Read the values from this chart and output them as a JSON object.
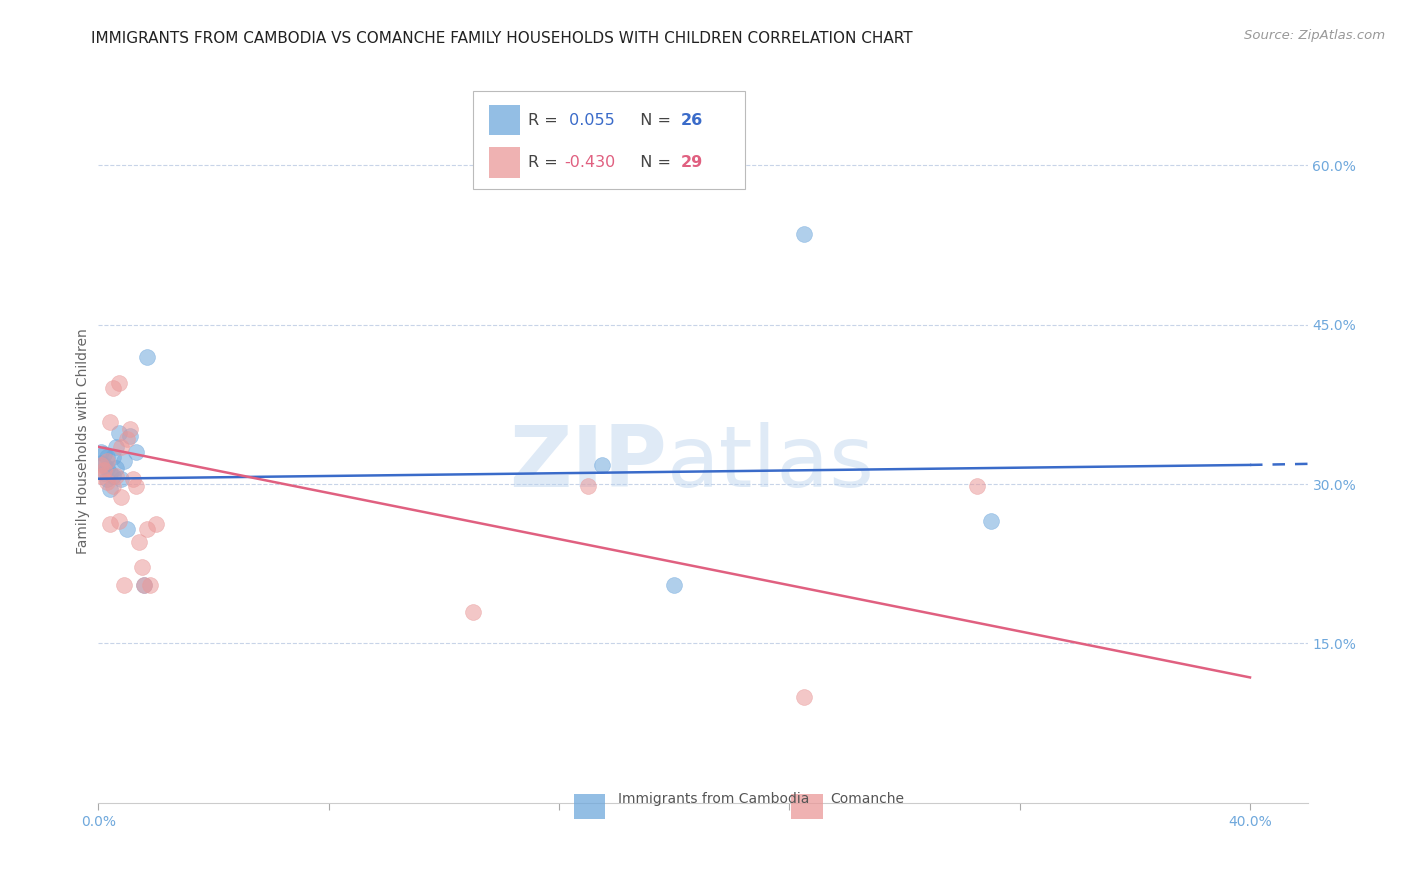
{
  "title": "IMMIGRANTS FROM CAMBODIA VS COMANCHE FAMILY HOUSEHOLDS WITH CHILDREN CORRELATION CHART",
  "source": "Source: ZipAtlas.com",
  "ylabel": "Family Households with Children",
  "y_ticks": [
    0.0,
    0.15,
    0.3,
    0.45,
    0.6
  ],
  "y_tick_labels": [
    "",
    "15.0%",
    "30.0%",
    "45.0%",
    "60.0%"
  ],
  "x_ticks": [
    0.0,
    0.08,
    0.16,
    0.24,
    0.32,
    0.4
  ],
  "x_tick_labels": [
    "0.0%",
    "",
    "",
    "",
    "",
    "40.0%"
  ],
  "xlim": [
    0.0,
    0.42
  ],
  "ylim": [
    0.0,
    0.68
  ],
  "blue_color": "#6fa8dc",
  "pink_color": "#ea9999",
  "blue_line_color": "#3a6bc9",
  "pink_line_color": "#e06080",
  "blue_scatter_x": [
    0.001,
    0.001,
    0.002,
    0.002,
    0.002,
    0.003,
    0.003,
    0.003,
    0.004,
    0.004,
    0.005,
    0.005,
    0.006,
    0.006,
    0.007,
    0.008,
    0.009,
    0.01,
    0.011,
    0.013,
    0.016,
    0.017,
    0.175,
    0.2,
    0.245,
    0.31
  ],
  "blue_scatter_y": [
    0.32,
    0.33,
    0.31,
    0.318,
    0.328,
    0.305,
    0.315,
    0.325,
    0.31,
    0.295,
    0.308,
    0.325,
    0.335,
    0.315,
    0.348,
    0.305,
    0.322,
    0.258,
    0.345,
    0.33,
    0.205,
    0.42,
    0.318,
    0.205,
    0.535,
    0.265
  ],
  "pink_scatter_x": [
    0.001,
    0.001,
    0.002,
    0.003,
    0.003,
    0.004,
    0.004,
    0.005,
    0.005,
    0.006,
    0.007,
    0.007,
    0.008,
    0.008,
    0.009,
    0.01,
    0.011,
    0.012,
    0.013,
    0.014,
    0.015,
    0.016,
    0.017,
    0.018,
    0.02,
    0.13,
    0.17,
    0.245,
    0.305
  ],
  "pink_scatter_y": [
    0.318,
    0.308,
    0.313,
    0.322,
    0.302,
    0.262,
    0.358,
    0.298,
    0.39,
    0.308,
    0.265,
    0.395,
    0.335,
    0.288,
    0.205,
    0.342,
    0.352,
    0.305,
    0.298,
    0.245,
    0.222,
    0.205,
    0.258,
    0.205,
    0.262,
    0.18,
    0.298,
    0.1,
    0.298
  ],
  "blue_line_x0": 0.0,
  "blue_line_y0": 0.305,
  "blue_line_x1": 0.4,
  "blue_line_y1": 0.318,
  "blue_line_dashed_x1": 0.42,
  "blue_line_dashed_y1": 0.319,
  "pink_line_x0": 0.0,
  "pink_line_y0": 0.335,
  "pink_line_x1": 0.4,
  "pink_line_y1": 0.118,
  "title_fontsize": 11,
  "source_fontsize": 9.5,
  "axis_label_fontsize": 10,
  "tick_fontsize": 10,
  "scatter_size": 130,
  "scatter_alpha": 0.55,
  "background_color": "#ffffff",
  "grid_color": "#c8d4e8",
  "right_axis_color": "#6fa8dc",
  "title_color": "#222222",
  "watermark_color": [
    0.72,
    0.82,
    0.93
  ]
}
